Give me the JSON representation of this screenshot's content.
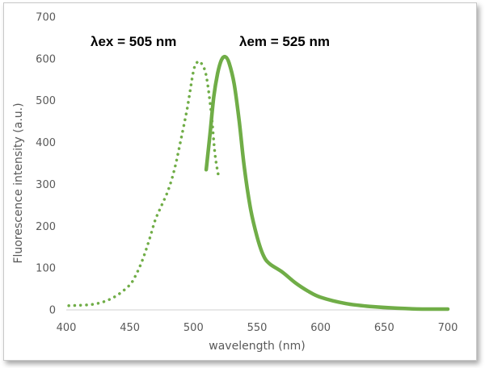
{
  "chart_data": {
    "type": "line",
    "title": "",
    "xlabel": "wavelength (nm)",
    "ylabel": "Fluorescence intensity (a.u.)",
    "xlim": [
      400,
      700
    ],
    "ylim": [
      0,
      700
    ],
    "x_ticks": [
      "400",
      "450",
      "500",
      "550",
      "600",
      "650",
      "700"
    ],
    "y_ticks": [
      "0",
      "100",
      "200",
      "300",
      "400",
      "500",
      "600",
      "700"
    ],
    "grid": false,
    "legend": "none",
    "annotations": [
      "λex = 505 nm",
      "λem = 525 nm"
    ],
    "series": [
      {
        "style": "dotted",
        "color": "#70ad47",
        "points": [
          [
            402,
            10
          ],
          [
            410,
            11
          ],
          [
            420,
            13
          ],
          [
            430,
            20
          ],
          [
            440,
            35
          ],
          [
            450,
            60
          ],
          [
            455,
            85
          ],
          [
            460,
            120
          ],
          [
            465,
            165
          ],
          [
            470,
            215
          ],
          [
            475,
            250
          ],
          [
            480,
            285
          ],
          [
            485,
            335
          ],
          [
            490,
            405
          ],
          [
            495,
            480
          ],
          [
            500,
            570
          ],
          [
            503,
            592
          ],
          [
            506,
            590
          ],
          [
            510,
            560
          ],
          [
            514,
            470
          ],
          [
            517,
            370
          ],
          [
            520,
            315
          ]
        ]
      },
      {
        "style": "solid",
        "color": "#70ad47",
        "points": [
          [
            510,
            335
          ],
          [
            513,
            420
          ],
          [
            516,
            510
          ],
          [
            519,
            565
          ],
          [
            522,
            597
          ],
          [
            525,
            605
          ],
          [
            528,
            590
          ],
          [
            532,
            540
          ],
          [
            536,
            450
          ],
          [
            540,
            340
          ],
          [
            545,
            240
          ],
          [
            550,
            175
          ],
          [
            555,
            130
          ],
          [
            560,
            110
          ],
          [
            570,
            90
          ],
          [
            580,
            65
          ],
          [
            590,
            45
          ],
          [
            600,
            30
          ],
          [
            620,
            15
          ],
          [
            640,
            8
          ],
          [
            660,
            4
          ],
          [
            680,
            2
          ],
          [
            700,
            2
          ]
        ]
      }
    ]
  }
}
